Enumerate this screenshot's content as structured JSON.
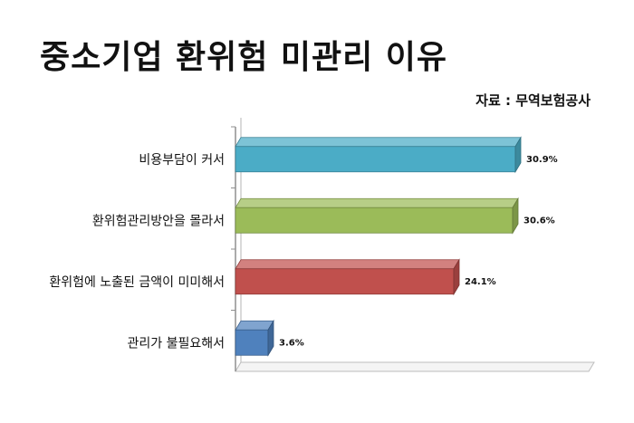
{
  "title": "중소기업 환위험 미관리 이유",
  "source": "자료 : 무역보험공사",
  "chart_data": {
    "type": "bar",
    "orientation": "horizontal",
    "style": "3d",
    "categories": [
      "비용부담이 커서",
      "환위험관리방안을 몰라서",
      "환위험에 노출된 금액이 미미해서",
      "관리가 불필요해서"
    ],
    "values": [
      30.9,
      30.6,
      24.1,
      3.6
    ],
    "value_labels": [
      "30.9%",
      "30.6%",
      "24.1%",
      "3.6%"
    ],
    "colors": [
      "#4bacc6",
      "#9bbb59",
      "#c0504d",
      "#4f81bd"
    ],
    "xlim": [
      0,
      35
    ],
    "grid": true,
    "legend": "none"
  }
}
